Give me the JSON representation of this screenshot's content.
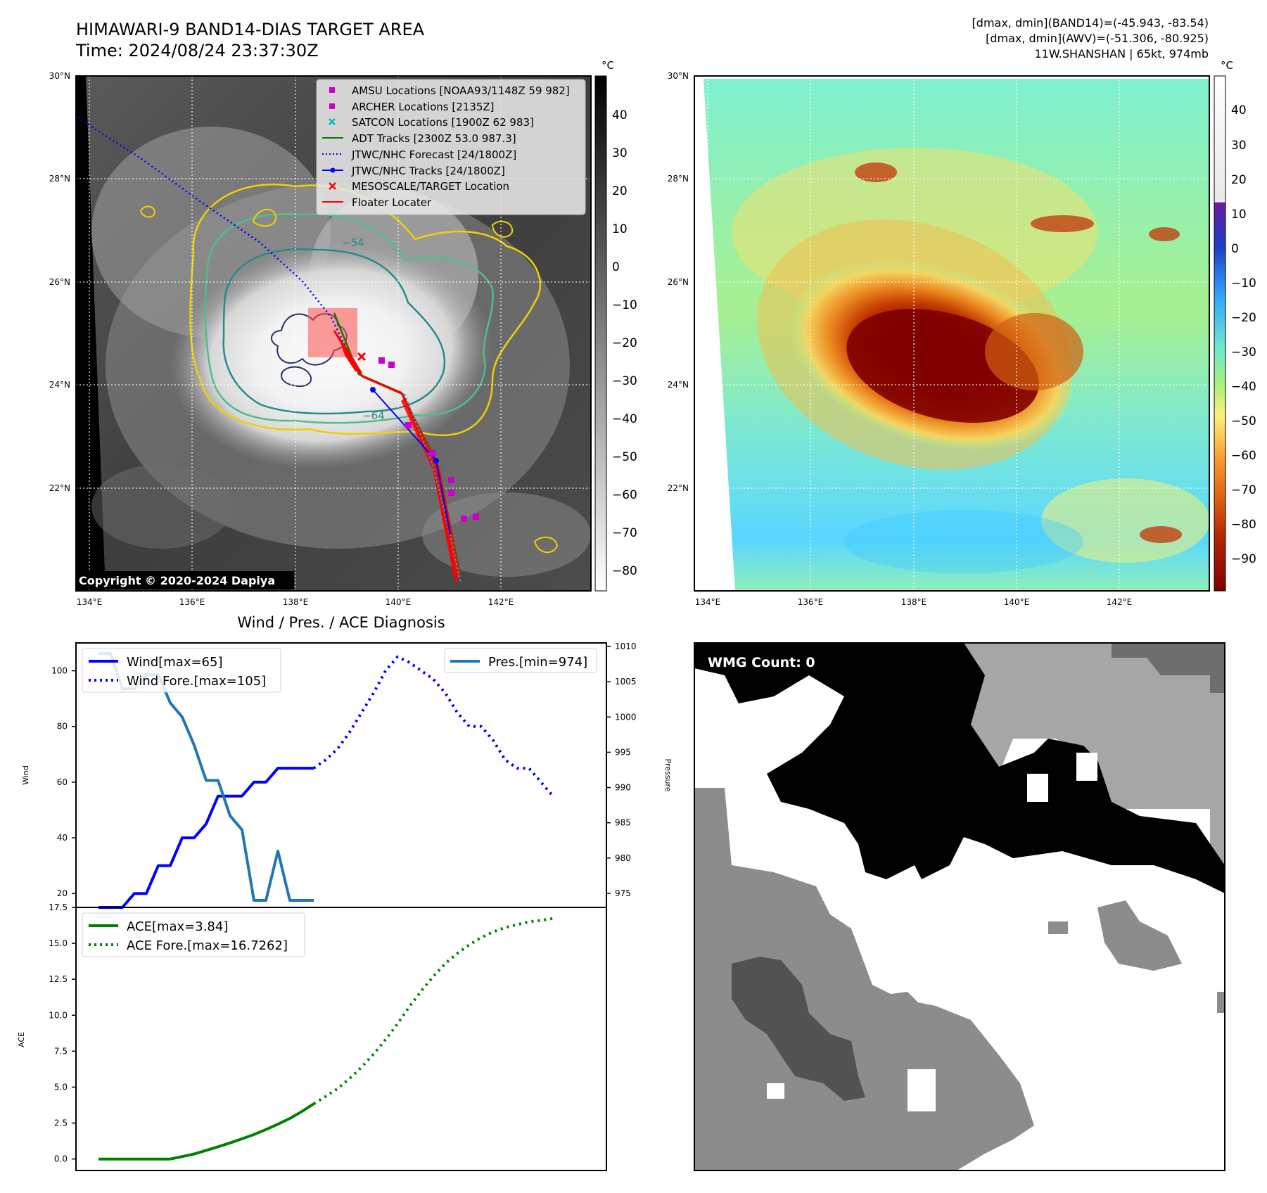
{
  "header": {
    "title_line1": "HIMAWARI-9 BAND14-DIAS TARGET AREA",
    "title_line2": "Time: 2024/08/24 23:37:30Z",
    "info_line1": "[dmax, dmin](BAND14)=(-45.943, -83.54)",
    "info_line2": "[dmax, dmin](AWV)=(-51.306, -80.925)",
    "info_line3": "11W.SHANSHAN | 65kt, 974mb"
  },
  "colors": {
    "wind": "#0000ff",
    "pressure": "#1f77b4",
    "ace": "#008000",
    "jtwc_track": "#0000ff",
    "adt_track": "#008000",
    "amsu": "#cc00cc",
    "satcon": "#00bbbb",
    "floater": "#ff0000"
  },
  "ir_map": {
    "lat_labels": [
      "30°N",
      "28°N",
      "26°N",
      "24°N",
      "22°N"
    ],
    "lon_labels": [
      "134°E",
      "136°E",
      "138°E",
      "140°E",
      "142°E"
    ],
    "lon_range": [
      133.7,
      143.7
    ],
    "lat_range": [
      20.0,
      30.0
    ],
    "colorbar_unit": "°C",
    "colorbar_ticks": [
      "40",
      "30",
      "20",
      "10",
      "0",
      "−10",
      "−20",
      "−30",
      "−40",
      "−50",
      "−60",
      "−70",
      "−80"
    ],
    "contour_labels": [
      "−54",
      "−64"
    ],
    "copyright": "Copyright © 2020-2024 Dapiya",
    "legend": [
      {
        "label": "AMSU Locations [NOAA93/1148Z 59 982]",
        "icon": "magenta-square"
      },
      {
        "label": "ARCHER Locations [2135Z]",
        "icon": "magenta-square"
      },
      {
        "label": "SATCON Locations [1900Z 62 983]",
        "icon": "cyan-x"
      },
      {
        "label": "ADT Tracks [2300Z 53.0 987.3]",
        "icon": "green-line"
      },
      {
        "label": "JTWC/NHC Forecast [24/1800Z]",
        "icon": "blue-dotted-line"
      },
      {
        "label": "JTWC/NHC Tracks [24/1800Z]",
        "icon": "blue-line-dot"
      },
      {
        "label": "MESOSCALE/TARGET Location",
        "icon": "red-x"
      },
      {
        "label": "Floater Locater",
        "icon": "red-line"
      }
    ]
  },
  "awv_map": {
    "lat_labels": [
      "30°N",
      "28°N",
      "26°N",
      "24°N",
      "22°N"
    ],
    "lon_labels": [
      "134°E",
      "136°E",
      "138°E",
      "140°E",
      "142°E"
    ],
    "colorbar_unit": "°C",
    "colorbar_ticks": [
      "40",
      "30",
      "20",
      "10",
      "0",
      "−10",
      "−20",
      "−30",
      "−40",
      "−50",
      "−60",
      "−70",
      "−80",
      "−90"
    ]
  },
  "wmg": {
    "label": "WMG Count: 0"
  },
  "chart_data": [
    {
      "type": "line",
      "title": "Wind / Pres. / ACE Diagnosis",
      "ylabel": "Wind",
      "ylabel_right": "Pressure",
      "ylim": [
        15,
        110
      ],
      "ylim_right": [
        973,
        1010.5
      ],
      "yticks": [
        20,
        40,
        60,
        80,
        100
      ],
      "yticks_right": [
        975,
        980,
        985,
        990,
        995,
        1000,
        1005,
        1010
      ],
      "series": [
        {
          "name": "Wind[max=65]",
          "style": "solid",
          "x": [
            0,
            1,
            2,
            3,
            4,
            5,
            6,
            7,
            8,
            9,
            10,
            11,
            12,
            13,
            14,
            15,
            16,
            17,
            18
          ],
          "values": [
            15,
            15,
            15,
            20,
            20,
            30,
            30,
            40,
            40,
            45,
            55,
            55,
            55,
            60,
            60,
            65,
            65,
            65,
            65
          ]
        },
        {
          "name": "Wind Fore.[max=105]",
          "style": "dotted",
          "x": [
            18,
            19,
            20,
            21,
            22,
            23,
            24,
            25,
            26,
            27,
            28,
            29,
            30,
            31,
            32,
            33,
            34,
            35,
            36,
            37,
            38
          ],
          "values": [
            65,
            68,
            72,
            78,
            85,
            92,
            100,
            105,
            103,
            100,
            97,
            92,
            85,
            80,
            80,
            75,
            68,
            65,
            65,
            60,
            55
          ]
        },
        {
          "name": "Pres.[min=974]",
          "style": "solid",
          "axis": "right",
          "x": [
            0,
            1,
            2,
            3,
            4,
            5,
            6,
            7,
            8,
            9,
            10,
            11,
            12,
            13,
            14,
            15,
            16,
            17,
            18
          ],
          "values": [
            1009,
            1009,
            1004,
            1004,
            1006,
            1006,
            1002,
            1000,
            996,
            991,
            991,
            986,
            984,
            974,
            974,
            981,
            974,
            974,
            974
          ]
        }
      ]
    },
    {
      "type": "line",
      "ylabel": "ACE",
      "ylim": [
        -0.8,
        17.5
      ],
      "yticks": [
        0.0,
        2.5,
        5.0,
        7.5,
        10.0,
        12.5,
        15.0,
        17.5
      ],
      "series": [
        {
          "name": "ACE[max=3.84]",
          "style": "solid",
          "x": [
            0,
            1,
            2,
            3,
            4,
            5,
            6,
            7,
            8,
            9,
            10,
            11,
            12,
            13,
            14,
            15,
            16,
            17,
            18
          ],
          "values": [
            0,
            0,
            0,
            0,
            0,
            0,
            0,
            0.17,
            0.35,
            0.6,
            0.85,
            1.12,
            1.4,
            1.7,
            2.05,
            2.42,
            2.82,
            3.3,
            3.84
          ]
        },
        {
          "name": "ACE Fore.[max=16.7262]",
          "style": "dotted",
          "x": [
            18,
            19,
            20,
            21,
            22,
            23,
            24,
            25,
            26,
            27,
            28,
            29,
            30,
            31,
            32,
            33,
            34,
            35,
            36,
            37,
            38
          ],
          "values": [
            3.84,
            4.35,
            4.9,
            5.6,
            6.4,
            7.3,
            8.3,
            9.4,
            10.6,
            11.7,
            12.7,
            13.6,
            14.3,
            14.9,
            15.4,
            15.8,
            16.1,
            16.3,
            16.5,
            16.6,
            16.7262
          ]
        }
      ]
    }
  ]
}
